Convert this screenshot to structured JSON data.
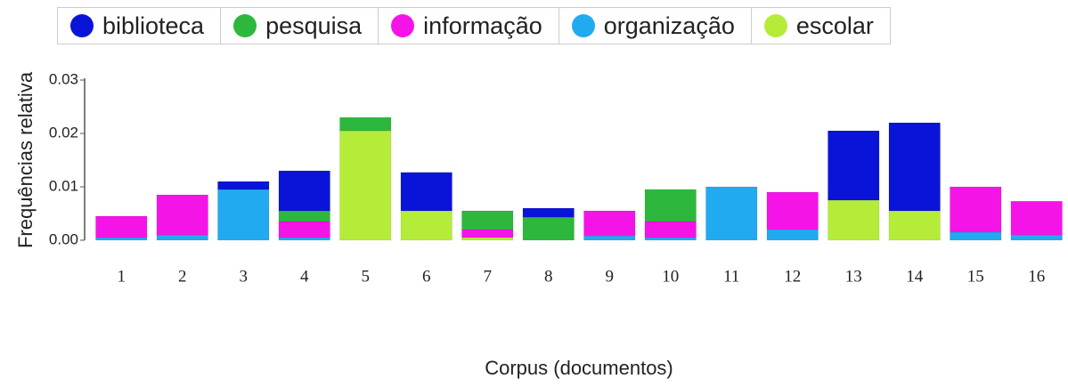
{
  "chart_data": {
    "type": "stacked_bar",
    "x_label": "Corpus (documentos)",
    "y_label": "Frequências relativa",
    "categories": [
      "1",
      "2",
      "3",
      "4",
      "5",
      "6",
      "7",
      "8",
      "9",
      "10",
      "11",
      "12",
      "13",
      "14",
      "15",
      "16"
    ],
    "series": [
      {
        "name": "biblioteca",
        "color": "#0a14d8",
        "values": [
          0,
          0,
          0.0015,
          0.0075,
          0,
          0.0072,
          0,
          0.0017,
          0,
          0,
          0,
          0,
          0.013,
          0.0165,
          0,
          0
        ]
      },
      {
        "name": "pesquisa",
        "color": "#2db83d",
        "values": [
          0,
          0,
          0,
          0.002,
          0.0025,
          0,
          0.0035,
          0.0043,
          0,
          0.006,
          0,
          0,
          0,
          0,
          0,
          0
        ]
      },
      {
        "name": "informação",
        "color": "#f514e8",
        "values": [
          0.004,
          0.0075,
          0,
          0.003,
          0,
          0,
          0.0015,
          0,
          0.0047,
          0.003,
          0,
          0.007,
          0,
          0,
          0.0085,
          0.0063
        ]
      },
      {
        "name": "organização",
        "color": "#22aaf0",
        "values": [
          0.0005,
          0.001,
          0.0095,
          0.0005,
          0,
          0,
          0,
          0,
          0.0008,
          0.0005,
          0.01,
          0.002,
          0,
          0,
          0.0015,
          0.001
        ]
      },
      {
        "name": "escolar",
        "color": "#b5ec3a",
        "values": [
          0,
          0,
          0,
          0,
          0.0205,
          0.0055,
          0.0005,
          0,
          0,
          0,
          0,
          0,
          0.0075,
          0.0055,
          0,
          0
        ]
      }
    ],
    "ylim": [
      0,
      0.03
    ],
    "yticks": [
      {
        "value": 0,
        "label": "0.00"
      },
      0.01,
      0.02,
      0.03
    ]
  }
}
